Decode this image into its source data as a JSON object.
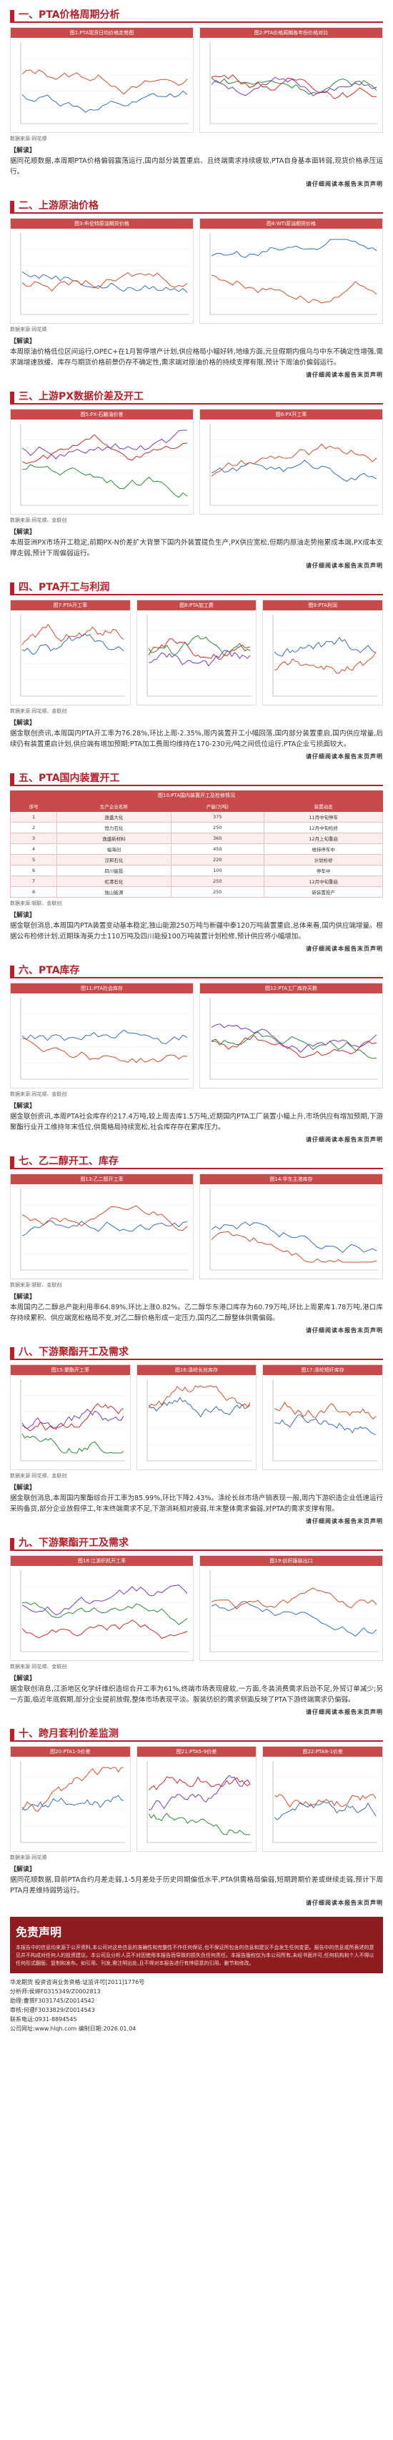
{
  "sections": [
    {
      "title": "一、PTA价格周期分析",
      "charts": [
        "图1:PTA现货日均价格走势图",
        "图2:PTA价格周期各年份价格对比"
      ],
      "source": "数据来源:同花顺",
      "note_title": "【解读】",
      "note": "据同花顺数据,本周期PTA价格偏弱震荡运行,国内部分装置重启、且终端需求持续疲软,PTA自身基本面转弱,现货价格承压运行。"
    },
    {
      "title": "二、上游原油价格",
      "charts": [
        "图3:布伦特原油期货价格",
        "图4:WTI原油期货价格"
      ],
      "source": "数据来源:同花顺",
      "note_title": "【解读】",
      "note": "本周原油价格低位区间运行,OPEC+在1月暂停增产计划,供应格局小幅好转,地缘方面,元旦假期内俄乌与中东不确定性增强,需求端增速放缓、库存与期货价格前景仍存不确定性,需求端对原油价格的持续支撑有限,预计下周油价偏弱运行。"
    },
    {
      "title": "三、上游PX数据价差及开工",
      "charts": [
        "图5:PX-石脑油价差",
        "图6:PX开工率"
      ],
      "source": "数据来源:同花顺、金联创",
      "note_title": "【解读】",
      "note": "本周亚洲PX市场开工稳定,前期PX-N价差扩大背景下国内外装置提负生产,PX供应宽松,但期内原油走势拖累成本端,PX成本支撑走弱,预计下周偏弱运行。"
    },
    {
      "title": "四、PTA开工与利润",
      "charts": [
        "图7:PTA开工率",
        "图8:PTA加工费",
        "图9:PTA利润"
      ],
      "source": "数据来源:同花顺、金联创",
      "note_title": "【解读】",
      "note": "据金联创资讯,本周国内PTA开工率为76.28%,环比上周-2.35%,周内装置开工小幅回落,国内部分装置重启,国内供应增量,后续仍有装置重启计划,供应端有增加预期;PTA加工费周均维持在170-230元/吨之间低位运行,PTA企业亏损面较大。"
    },
    {
      "title": "五、PTA国内装置开工",
      "table_caption": "图10:PTA国内装置开工及检修情况",
      "table_headers": [
        "序号",
        "生产企业名称",
        "产能(万吨)",
        "装置动态"
      ],
      "table_rows": [
        [
          "1",
          "逸盛大化",
          "375",
          "11月中旬停车"
        ],
        [
          "2",
          "恒力石化",
          "250",
          "12月中旬检修"
        ],
        [
          "3",
          "逸盛新材料",
          "360",
          "12月上旬重启"
        ],
        [
          "4",
          "福海创",
          "450",
          "维持停车中"
        ],
        [
          "5",
          "汉邦石化",
          "220",
          "计划检修"
        ],
        [
          "6",
          "四川能投",
          "100",
          "停车中"
        ],
        [
          "7",
          "虹港石化",
          "250",
          "12月中旬重启"
        ],
        [
          "8",
          "独山能源",
          "250",
          "新装置投产"
        ]
      ],
      "source": "数据来源:钢联、金联创",
      "note_title": "【解读】",
      "note": "据金联创消息,本周国内PTA装置变动基本稳定,独山能源250万吨与新疆中泰120万吨装置重启,总体来看,国内供应端增量。根据公布检修计划,近期珠海英力士110万吨及四川能投100万吨装置计划检修,预计供应将小幅增加。"
    },
    {
      "title": "六、PTA库存",
      "charts": [
        "图11:PTA社会库存",
        "图12:PTA工厂库存天数"
      ],
      "source": "数据来源:同花顺、金联创",
      "note_title": "【解读】",
      "note": "据金联创资讯,本周PTA社会库存约217.4万吨,较上周去库1.5万吨,近期国内PTA工厂装置小幅上升,市场供应有增加预期,下游聚酯行业开工维持年末低位,供需格局持续宽松,社会库存存在累库压力。"
    },
    {
      "title": "七、乙二醇开工、库存",
      "charts": [
        "图13:乙二醇开工率",
        "图14:华东主港库存"
      ],
      "source": "数据来源:钢联、金联创",
      "note_title": "【解读】",
      "note": "本周国内乙二醇总产能利用率64.89%,环比上涨0.82%。乙二醇华东港口库存为60.79万吨,环比上周累库1.78万吨,港口库存持续累积、供应端宽松格局不变,对乙二醇价格形成一定压力,国内乙二醇整体供需偏弱。"
    },
    {
      "title": "八、下游聚酯开工及需求",
      "charts": [
        "图15:聚酯开工率",
        "图16:涤纶长丝库存",
        "图17:涤纶短纤库存"
      ],
      "source": "数据来源:同花顺、金联创",
      "note_title": "【解读】",
      "note": "据金联创消息,本周国内聚酯综合开工率为85.99%,环比下降2.43%。涤纶长丝市场产销表现一般,周内下游织造企业低速运行采购备货,部分企业放假停工,年末终端需求不足,下游消耗相对疲弱,年末整体需求偏弱,对PTA的需求支撑有限。"
    },
    {
      "title": "九、下游聚酯开工及需求",
      "charts": [
        "图18:江浙织机开工率",
        "图19:纺织服装出口"
      ],
      "source": "数据来源:同花顺、金联创",
      "note_title": "【解读】",
      "note": "据金联创消息,江浙地区化学纤维织造综合开工率为61%,终端市场表现疲软,一方面,冬装消费需求后劲不足,外贸订单减少;另一方面,临近年底假期,部分企业提前放假,整体市场表现平淡。服装纺织的需求侧面反映了PTA下游终端需求仍偏弱。"
    },
    {
      "title": "十、跨月套利价差监测",
      "charts": [
        "图20:PTA1-5价差",
        "图21:PTA5-9价差",
        "图22:PTA9-1价差"
      ],
      "source": "数据来源:同花顺",
      "note_title": "【解读】",
      "note": "据同花顺数据,目前PTA合约月差走弱,1-5月差处于历史同期偏低水平,PTA供需格局偏弱,短期跨期价差或继续走弱,预计下周PTA月差维持弱势运行。"
    }
  ],
  "watermark": "请仔细阅读本报告末页声明",
  "disclaimer": {
    "title": "免责声明",
    "body": "本报告中的信息均来源于公开资料,本公司对这些信息的准确性和完整性不作任何保证,也不保证所包含的信息和建议不会发生任何变更。报告中的信息或所表述的意见并不构成对任何人的投资建议。本公司及分析人员不对因使用本报告而导致的损失负任何责任。本报告版权仅为本公司所有,未经书面许可,任何机构和个人不得以任何形式翻版、复制和发布。如引用、刊发,需注明出处,且不得对本报告进行有悖原意的引用、删节和修改。"
  },
  "footer": [
    "华龙期货 投资咨询业务资格:证监许可[2011]1776号",
    "分析师:侯婷F0315349/Z0002813",
    "助理:曹赟F3031745/Z0014542",
    "审核:何遵F3033829/Z0014543",
    "联系电话:0931-8894545",
    "公司网址:www.hlqh.com 编制日期:2026.01.04"
  ],
  "colors": {
    "accent": "#b8202a",
    "chart_header": "#c84a4a"
  }
}
